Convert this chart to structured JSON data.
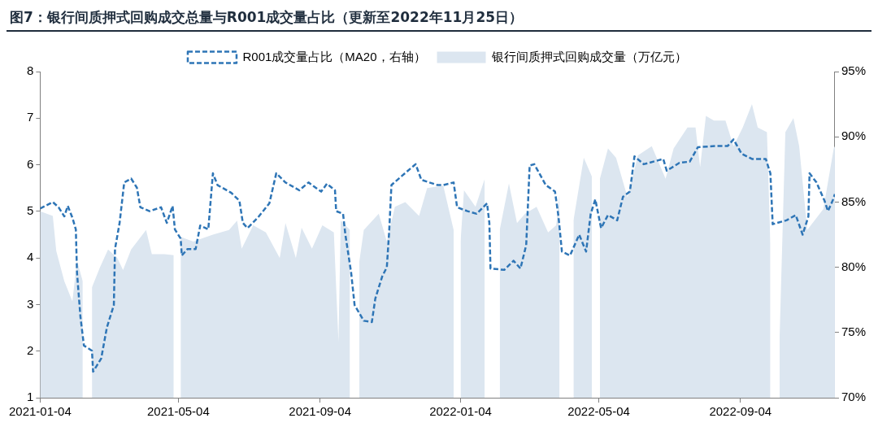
{
  "chart_data": {
    "type": "area",
    "title": "图7：银行间质押式回购成交总量与R001成交量占比（更新至2022年11月25日）",
    "xlim": [
      "2021-01-04",
      "2022-11-25"
    ],
    "xticks": [
      "2021-01-04",
      "2021-05-04",
      "2021-09-04",
      "2022-01-04",
      "2022-05-04",
      "2022-09-04"
    ],
    "ylim": [
      1,
      8
    ],
    "yticks": [
      1,
      2,
      3,
      4,
      5,
      6,
      7,
      8
    ],
    "y2lim": [
      70,
      95
    ],
    "y2ticks": [
      {
        "value": 70,
        "label": "70%"
      },
      {
        "value": 75,
        "label": "75%"
      },
      {
        "value": 80,
        "label": "80%"
      },
      {
        "value": 85,
        "label": "85%"
      },
      {
        "value": 90,
        "label": "90%"
      },
      {
        "value": 95,
        "label": "95%"
      }
    ],
    "grid": false,
    "legend": "top",
    "marker": "none",
    "series": [
      {
        "name": "银行间质押式回购成交量（万亿元）",
        "type": "area",
        "color": "#dce6f0",
        "x": [
          "2021-01-04",
          "2021-01-15",
          "2021-01-18",
          "2021-01-25",
          "2021-02-01",
          "2021-02-05",
          "2021-02-10",
          "2021-02-12",
          "2021-02-18",
          "2021-02-25",
          "2021-03-04",
          "2021-03-12",
          "2021-03-17",
          "2021-03-24",
          "2021-04-06",
          "2021-04-11",
          "2021-04-22",
          "2021-04-30",
          "2021-05-03",
          "2021-05-06",
          "2021-05-17",
          "2021-06-03",
          "2021-06-17",
          "2021-06-24",
          "2021-06-28",
          "2021-07-08",
          "2021-07-19",
          "2021-07-31",
          "2021-08-05",
          "2021-08-14",
          "2021-08-19",
          "2021-08-28",
          "2021-09-06",
          "2021-09-16",
          "2021-09-20",
          "2021-09-22",
          "2021-09-30",
          "2021-10-01",
          "2021-10-08",
          "2021-10-12",
          "2021-10-25",
          "2021-11-01",
          "2021-11-08",
          "2021-11-17",
          "2021-11-29",
          "2021-12-06",
          "2021-12-20",
          "2021-12-29",
          "2022-01-01",
          "2022-01-04",
          "2022-01-07",
          "2022-01-17",
          "2022-01-25",
          "2022-01-31",
          "2022-02-07",
          "2022-02-15",
          "2022-02-22",
          "2022-03-01",
          "2022-03-11",
          "2022-03-21",
          "2022-03-28",
          "2022-03-31",
          "2022-04-04",
          "2022-04-12",
          "2022-04-21",
          "2022-04-28",
          "2022-05-03",
          "2022-05-05",
          "2022-05-12",
          "2022-05-19",
          "2022-05-29",
          "2022-06-07",
          "2022-06-19",
          "2022-07-01",
          "2022-07-08",
          "2022-07-20",
          "2022-07-27",
          "2022-07-31",
          "2022-08-05",
          "2022-08-12",
          "2022-08-22",
          "2022-08-29",
          "2022-09-06",
          "2022-09-14",
          "2022-09-19",
          "2022-09-27",
          "2022-09-30",
          "2022-10-01",
          "2022-10-08",
          "2022-10-13",
          "2022-10-20",
          "2022-10-25",
          "2022-11-01",
          "2022-11-15",
          "2022-11-24",
          "2022-11-25"
        ],
        "values": [
          5.0,
          4.9,
          4.15,
          3.5,
          3.07,
          3.94,
          3.5,
          null,
          3.37,
          3.8,
          4.18,
          4.0,
          3.74,
          4.18,
          4.6,
          4.08,
          4.08,
          4.06,
          null,
          4.45,
          4.35,
          4.5,
          4.6,
          4.8,
          4.2,
          4.7,
          4.55,
          4.0,
          4.75,
          4.0,
          4.65,
          4.2,
          4.7,
          4.55,
          2.2,
          4.8,
          4.6,
          null,
          3.9,
          4.6,
          4.95,
          4.35,
          5.1,
          5.2,
          4.9,
          5.5,
          5.55,
          4.6,
          null,
          4.35,
          5.45,
          5.1,
          5.7,
          null,
          4.6,
          5.6,
          4.75,
          4.95,
          5.1,
          4.55,
          4.7,
          5.4,
          null,
          4.8,
          6.15,
          5.75,
          null,
          5.7,
          6.35,
          6.15,
          5.3,
          6.2,
          6.4,
          5.7,
          6.35,
          6.8,
          6.8,
          5.95,
          7.05,
          6.95,
          6.95,
          6.4,
          6.8,
          7.3,
          6.8,
          6.7,
          4.3,
          null,
          2.3,
          6.7,
          7.0,
          6.4,
          4.6,
          5.05,
          6.35,
          6.4
        ]
      },
      {
        "name": "R001成交量占比（MA20，右轴）",
        "type": "line",
        "axis": "y2",
        "line_style": "dashed",
        "color": "#2e75b6",
        "x": [
          "2021-01-04",
          "2021-01-15",
          "2021-01-20",
          "2021-01-25",
          "2021-01-28",
          "2021-02-01",
          "2021-02-04",
          "2021-02-05",
          "2021-02-08",
          "2021-02-11",
          "2021-02-18",
          "2021-02-19",
          "2021-02-26",
          "2021-03-03",
          "2021-03-09",
          "2021-03-10",
          "2021-03-14",
          "2021-03-18",
          "2021-03-24",
          "2021-03-29",
          "2021-04-01",
          "2021-04-09",
          "2021-04-19",
          "2021-04-24",
          "2021-04-29",
          "2021-05-01",
          "2021-05-06",
          "2021-05-07",
          "2021-05-12",
          "2021-05-19",
          "2021-05-23",
          "2021-05-30",
          "2021-06-03",
          "2021-06-07",
          "2021-06-19",
          "2021-06-26",
          "2021-06-29",
          "2021-07-03",
          "2021-07-12",
          "2021-07-22",
          "2021-07-28",
          "2021-08-05",
          "2021-08-17",
          "2021-08-25",
          "2021-09-05",
          "2021-09-10",
          "2021-09-17",
          "2021-09-18",
          "2021-09-24",
          "2021-09-26",
          "2021-10-01",
          "2021-10-04",
          "2021-10-12",
          "2021-10-19",
          "2021-10-22",
          "2021-10-28",
          "2021-11-01",
          "2021-11-03",
          "2021-11-05",
          "2021-11-14",
          "2021-11-26",
          "2021-12-01",
          "2021-12-15",
          "2021-12-20",
          "2021-12-29",
          "2022-01-01",
          "2022-01-10",
          "2022-01-18",
          "2022-01-27",
          "2022-01-29",
          "2022-01-30",
          "2022-02-11",
          "2022-02-19",
          "2022-02-25",
          "2022-03-02",
          "2022-03-05",
          "2022-03-09",
          "2022-03-19",
          "2022-03-27",
          "2022-03-30",
          "2022-04-02",
          "2022-04-09",
          "2022-04-17",
          "2022-04-23",
          "2022-04-27",
          "2022-05-01",
          "2022-05-06",
          "2022-05-12",
          "2022-05-20",
          "2022-05-25",
          "2022-05-31",
          "2022-06-04",
          "2022-06-12",
          "2022-06-29",
          "2022-07-02",
          "2022-07-13",
          "2022-07-22",
          "2022-07-29",
          "2022-08-15",
          "2022-08-24",
          "2022-08-29",
          "2022-09-05",
          "2022-09-14",
          "2022-09-26",
          "2022-09-30",
          "2022-10-02",
          "2022-10-14",
          "2022-10-22",
          "2022-10-28",
          "2022-11-02",
          "2022-11-03",
          "2022-11-09",
          "2022-11-16",
          "2022-11-19",
          "2022-11-23",
          "2022-11-25"
        ],
        "values": [
          84.5,
          85.0,
          84.6,
          83.9,
          84.7,
          83.8,
          82.9,
          79.6,
          76.2,
          74.0,
          73.6,
          72.0,
          73.0,
          75.4,
          77.1,
          81.4,
          83.4,
          86.5,
          86.8,
          86.1,
          84.6,
          84.3,
          84.6,
          83.4,
          84.7,
          82.9,
          82.2,
          80.9,
          81.4,
          81.4,
          83.2,
          82.9,
          87.2,
          86.3,
          85.7,
          85.1,
          83.4,
          83.0,
          83.8,
          84.9,
          87.2,
          86.5,
          85.9,
          86.5,
          85.8,
          86.4,
          85.9,
          84.3,
          84.1,
          82.5,
          79.6,
          77.1,
          75.9,
          75.8,
          77.6,
          79.3,
          80.0,
          82.7,
          86.3,
          87.0,
          87.9,
          86.7,
          86.3,
          86.3,
          86.5,
          84.6,
          84.3,
          84.1,
          84.9,
          83.4,
          79.9,
          79.8,
          80.5,
          79.9,
          81.7,
          87.8,
          87.9,
          86.3,
          85.8,
          83.9,
          81.2,
          80.9,
          82.5,
          81.2,
          84.1,
          85.2,
          83.0,
          84.0,
          83.6,
          85.4,
          85.8,
          88.5,
          87.9,
          88.3,
          87.4,
          88.0,
          88.1,
          89.2,
          89.3,
          89.3,
          89.8,
          88.7,
          88.3,
          88.3,
          87.2,
          83.3,
          83.6,
          84.0,
          82.5,
          83.9,
          87.2,
          86.5,
          85.1,
          84.3,
          85.1,
          85.6
        ]
      }
    ]
  }
}
